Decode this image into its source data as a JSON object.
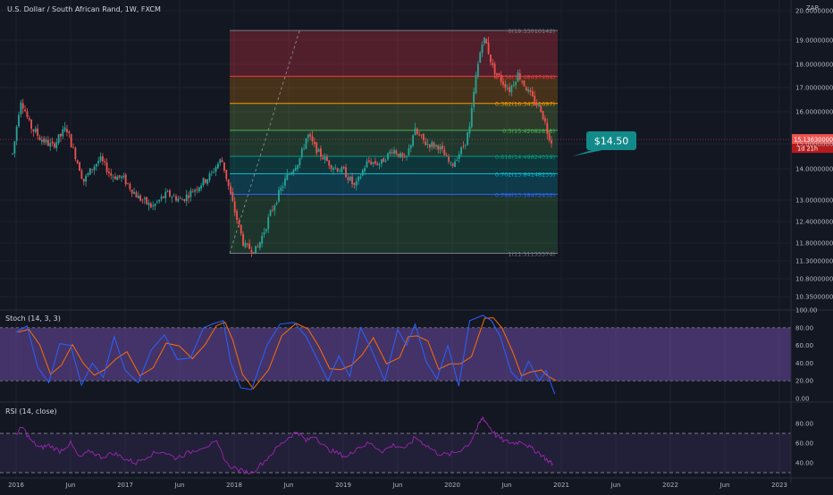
{
  "header": {
    "title": "U.S. Dollar / South African Rand, 1W, FXCM"
  },
  "axis": {
    "currency": "ZAR"
  },
  "price_ticks": [
    "20.00000000",
    "19.00000000",
    "18.00000000",
    "17.00000000",
    "16.00000000",
    "15.00000000",
    "14.00000000",
    "13.00000000",
    "12.40000000",
    "11.80000000",
    "11.30000000",
    "10.80000000",
    "10.35000000"
  ],
  "price_labels": {
    "last": "15.13630000",
    "countdown": "1d 21h"
  },
  "fib_labels": [
    "0(19.33010142)",
    "0.236(17.48497464)",
    "0.382(16.34341697)",
    "0.5(15.42082858)",
    "0.618(14.49824019)",
    "0.702(13.84148235)",
    "0.786(13.18472452)",
    "1(11.51155574)"
  ],
  "callout": {
    "text": "$14.50"
  },
  "time_labels": [
    "2016",
    "Jun",
    "2017",
    "Jun",
    "2018",
    "Jun",
    "2019",
    "Jun",
    "2020",
    "Jun",
    "2021",
    "Jun",
    "2022",
    "Jun",
    "2023"
  ],
  "stoch": {
    "title": "Stoch (14, 3, 3)",
    "ticks": [
      "100.00",
      "80.00",
      "60.00",
      "40.00",
      "20.00",
      "0.00"
    ]
  },
  "rsi": {
    "title": "RSI (14, close)",
    "ticks": [
      "80.00",
      "60.00",
      "40.00"
    ]
  },
  "colors": {
    "background": "#131722",
    "up": "#26a69a",
    "down": "#ef5350",
    "stoch_k": "#2962ff",
    "stoch_d": "#ff6d00",
    "stoch_band": "#7e57c2",
    "rsi_line": "#9c27b0",
    "callout": "#138a8a"
  },
  "chart_data": {
    "type": "candlestick",
    "symbol": "USD/ZAR",
    "x_range": [
      "2015-12",
      "2023-01"
    ],
    "y_range": [
      10.1,
      20.4
    ],
    "price_path": [
      [
        "2015-12-20",
        14.6
      ],
      [
        "2016-01-17",
        16.5
      ],
      [
        "2016-02-14",
        15.6
      ],
      [
        "2016-03-20",
        15.2
      ],
      [
        "2016-05-01",
        14.9
      ],
      [
        "2016-06-19",
        15.5
      ],
      [
        "2016-08-14",
        13.6
      ],
      [
        "2016-10-09",
        14.4
      ],
      [
        "2016-11-13",
        13.8
      ],
      [
        "2016-12-25",
        13.7
      ],
      [
        "2017-02-12",
        13.1
      ],
      [
        "2017-04-02",
        12.8
      ],
      [
        "2017-05-21",
        13.2
      ],
      [
        "2017-07-09",
        13.0
      ],
      [
        "2017-08-27",
        13.4
      ],
      [
        "2017-10-15",
        13.8
      ],
      [
        "2017-11-19",
        14.4
      ],
      [
        "2017-12-24",
        13.0
      ],
      [
        "2018-02-04",
        11.7
      ],
      [
        "2018-03-18",
        11.6
      ],
      [
        "2018-05-06",
        12.7
      ],
      [
        "2018-06-24",
        13.7
      ],
      [
        "2018-08-05",
        14.3
      ],
      [
        "2018-09-02",
        15.3
      ],
      [
        "2018-10-14",
        14.6
      ],
      [
        "2018-11-25",
        14.1
      ],
      [
        "2019-01-06",
        13.9
      ],
      [
        "2019-02-10",
        13.4
      ],
      [
        "2019-03-24",
        14.3
      ],
      [
        "2019-05-05",
        14.2
      ],
      [
        "2019-06-16",
        14.8
      ],
      [
        "2019-07-28",
        14.3
      ],
      [
        "2019-08-25",
        15.4
      ],
      [
        "2019-10-06",
        15.0
      ],
      [
        "2019-11-17",
        14.9
      ],
      [
        "2019-12-29",
        14.1
      ],
      [
        "2020-02-02",
        14.8
      ],
      [
        "2020-03-01",
        15.5
      ],
      [
        "2020-03-22",
        17.6
      ],
      [
        "2020-04-12",
        19.1
      ],
      [
        "2020-04-26",
        18.8
      ],
      [
        "2020-05-17",
        17.8
      ],
      [
        "2020-06-14",
        17.3
      ],
      [
        "2020-07-12",
        16.9
      ],
      [
        "2020-08-09",
        17.6
      ],
      [
        "2020-09-13",
        16.8
      ],
      [
        "2020-10-04",
        16.4
      ],
      [
        "2020-10-25",
        16.1
      ],
      [
        "2020-11-15",
        15.4
      ],
      [
        "2020-11-29",
        15.1
      ]
    ],
    "last_price": 15.1363,
    "fibonacci_retracement": {
      "start": [
        "2017-12-17",
        11.51155574
      ],
      "end": [
        "2020-12-20",
        19.33010142
      ],
      "levels": [
        [
          0,
          19.33010142
        ],
        [
          0.236,
          17.48497464
        ],
        [
          0.382,
          16.34341697
        ],
        [
          0.5,
          15.42082858
        ],
        [
          0.618,
          14.49824019
        ],
        [
          0.702,
          13.84148235
        ],
        [
          0.786,
          13.18472452
        ],
        [
          1,
          11.51155574
        ]
      ]
    },
    "callout_price": 14.5,
    "stoch": {
      "params": [
        14,
        3,
        3
      ],
      "y_range": [
        0,
        100
      ],
      "bands": [
        20,
        80
      ],
      "k": [
        [
          2016.0,
          75
        ],
        [
          2016.1,
          82
        ],
        [
          2016.2,
          35
        ],
        [
          2016.3,
          18
        ],
        [
          2016.4,
          62
        ],
        [
          2016.5,
          60
        ],
        [
          2016.6,
          15
        ],
        [
          2016.7,
          40
        ],
        [
          2016.8,
          24
        ],
        [
          2016.9,
          70
        ],
        [
          2017.0,
          32
        ],
        [
          2017.12,
          18
        ],
        [
          2017.24,
          55
        ],
        [
          2017.36,
          72
        ],
        [
          2017.48,
          44
        ],
        [
          2017.6,
          46
        ],
        [
          2017.72,
          80
        ],
        [
          2017.82,
          85
        ],
        [
          2017.9,
          88
        ],
        [
          2017.97,
          40
        ],
        [
          2018.06,
          12
        ],
        [
          2018.16,
          10
        ],
        [
          2018.3,
          60
        ],
        [
          2018.42,
          84
        ],
        [
          2018.55,
          86
        ],
        [
          2018.66,
          70
        ],
        [
          2018.76,
          45
        ],
        [
          2018.86,
          20
        ],
        [
          2018.96,
          48
        ],
        [
          2019.06,
          25
        ],
        [
          2019.16,
          80
        ],
        [
          2019.26,
          55
        ],
        [
          2019.38,
          20
        ],
        [
          2019.5,
          78
        ],
        [
          2019.58,
          60
        ],
        [
          2019.66,
          84
        ],
        [
          2019.76,
          42
        ],
        [
          2019.86,
          22
        ],
        [
          2019.96,
          60
        ],
        [
          2020.06,
          14
        ],
        [
          2020.16,
          88
        ],
        [
          2020.28,
          94
        ],
        [
          2020.36,
          88
        ],
        [
          2020.44,
          70
        ],
        [
          2020.54,
          30
        ],
        [
          2020.62,
          20
        ],
        [
          2020.7,
          42
        ],
        [
          2020.8,
          20
        ],
        [
          2020.86,
          32
        ],
        [
          2020.94,
          5
        ]
      ]
    },
    "rsi": {
      "params": [
        14
      ],
      "y_range": [
        30,
        90
      ],
      "bands": [
        30,
        70
      ],
      "values": [
        [
          2016.0,
          70
        ],
        [
          2016.06,
          76
        ],
        [
          2016.14,
          62
        ],
        [
          2016.22,
          55
        ],
        [
          2016.3,
          58
        ],
        [
          2016.4,
          52
        ],
        [
          2016.5,
          60
        ],
        [
          2016.58,
          45
        ],
        [
          2016.68,
          52
        ],
        [
          2016.78,
          46
        ],
        [
          2016.9,
          50
        ],
        [
          2017.0,
          44
        ],
        [
          2017.1,
          40
        ],
        [
          2017.22,
          48
        ],
        [
          2017.34,
          52
        ],
        [
          2017.46,
          45
        ],
        [
          2017.58,
          50
        ],
        [
          2017.7,
          56
        ],
        [
          2017.84,
          60
        ],
        [
          2017.94,
          38
        ],
        [
          2018.06,
          32
        ],
        [
          2018.16,
          30
        ],
        [
          2018.28,
          42
        ],
        [
          2018.4,
          56
        ],
        [
          2018.5,
          66
        ],
        [
          2018.58,
          72
        ],
        [
          2018.66,
          62
        ],
        [
          2018.74,
          68
        ],
        [
          2018.84,
          55
        ],
        [
          2018.94,
          50
        ],
        [
          2019.04,
          46
        ],
        [
          2019.12,
          55
        ],
        [
          2019.24,
          60
        ],
        [
          2019.36,
          52
        ],
        [
          2019.46,
          58
        ],
        [
          2019.58,
          55
        ],
        [
          2019.66,
          66
        ],
        [
          2019.76,
          58
        ],
        [
          2019.86,
          50
        ],
        [
          2019.96,
          48
        ],
        [
          2020.06,
          52
        ],
        [
          2020.16,
          60
        ],
        [
          2020.24,
          78
        ],
        [
          2020.28,
          86
        ],
        [
          2020.32,
          80
        ],
        [
          2020.4,
          68
        ],
        [
          2020.48,
          62
        ],
        [
          2020.56,
          60
        ],
        [
          2020.64,
          62
        ],
        [
          2020.72,
          55
        ],
        [
          2020.8,
          50
        ],
        [
          2020.88,
          42
        ],
        [
          2020.93,
          38
        ]
      ]
    }
  }
}
